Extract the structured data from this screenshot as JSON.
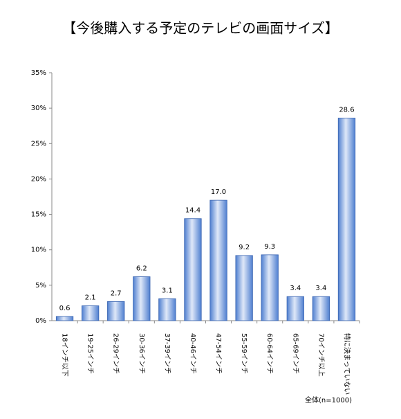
{
  "chart_data": {
    "type": "bar",
    "title": "【今後購入する予定のテレビの画面サイズ】",
    "categories": [
      "18インチ以下",
      "19-25インチ",
      "26-29インチ",
      "30-36インチ",
      "37-39インチ",
      "40-46インチ",
      "47-54インチ",
      "55-59インチ",
      "60-64インチ",
      "65-69インチ",
      "70インチ以上",
      "特に決まっていない"
    ],
    "values": [
      0.6,
      2.1,
      2.7,
      6.2,
      3.1,
      14.4,
      17.0,
      9.2,
      9.3,
      3.4,
      3.4,
      28.6
    ],
    "value_labels": [
      "0.6",
      "2.1",
      "2.7",
      "6.2",
      "3.1",
      "14.4",
      "17.0",
      "9.2",
      "9.3",
      "3.4",
      "3.4",
      "28.6"
    ],
    "color": "#4f7fd0",
    "ylim": [
      0,
      35
    ],
    "yticks": [
      {
        "value": 0,
        "label": "0%"
      },
      {
        "value": 5,
        "label": "5%"
      },
      {
        "value": 10,
        "label": "10%"
      },
      {
        "value": 15,
        "label": "15%"
      },
      {
        "value": 20,
        "label": "20%"
      },
      {
        "value": 25,
        "label": "25%"
      },
      {
        "value": 30,
        "label": "30%"
      },
      {
        "value": 35,
        "label": "35%"
      }
    ],
    "grid": false,
    "note": "全体(n=1000)"
  }
}
